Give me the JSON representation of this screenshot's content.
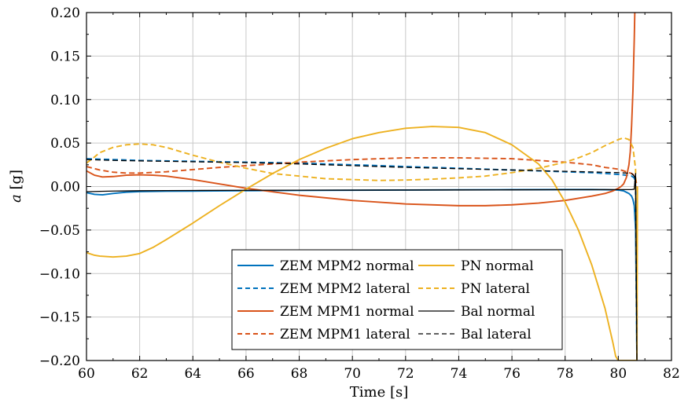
{
  "chart_data": {
    "type": "line",
    "xlabel": "Time [s]",
    "ylabel_italic": "a",
    "ylabel_unit": " [g]",
    "xlim": [
      60,
      82
    ],
    "ylim": [
      -0.2,
      0.2
    ],
    "x_ticks": [
      60,
      62,
      64,
      66,
      68,
      70,
      72,
      74,
      76,
      78,
      80,
      82
    ],
    "x_tick_labels": [
      "60",
      "62",
      "64",
      "66",
      "68",
      "70",
      "72",
      "74",
      "76",
      "78",
      "80",
      "82"
    ],
    "y_ticks": [
      -0.2,
      -0.15,
      -0.1,
      -0.05,
      0.0,
      0.05,
      0.1,
      0.15,
      0.2
    ],
    "y_tick_labels": [
      "−0.20",
      "−0.15",
      "−0.10",
      "−0.05",
      "0.00",
      "0.05",
      "0.10",
      "0.15",
      "0.20"
    ],
    "grid": true,
    "legend_position": "bottom-center",
    "colors": {
      "blue": "#0072bd",
      "orange": "#d95319",
      "yellow": "#edb120",
      "black": "#000000"
    },
    "series": [
      {
        "name": "ZEM MPM2 normal",
        "color": "#0072bd",
        "dash": "solid",
        "x": [
          60,
          60.3,
          60.6,
          61,
          61.5,
          62,
          63,
          64,
          66,
          68,
          70,
          72,
          74,
          76,
          78,
          79,
          79.5,
          80,
          80.2,
          80.4,
          80.5,
          80.55,
          80.6,
          80.65,
          80.7
        ],
        "y": [
          -0.007,
          -0.009,
          -0.0095,
          -0.008,
          -0.0065,
          -0.0058,
          -0.0054,
          -0.0052,
          -0.0048,
          -0.0045,
          -0.0042,
          -0.004,
          -0.0038,
          -0.0036,
          -0.0035,
          -0.0035,
          -0.0036,
          -0.004,
          -0.005,
          -0.008,
          -0.011,
          -0.015,
          -0.022,
          -0.05,
          -0.2
        ]
      },
      {
        "name": "ZEM MPM2 lateral",
        "color": "#0072bd",
        "dash": "dashed",
        "x": [
          60,
          61,
          62,
          64,
          66,
          68,
          70,
          72,
          74,
          76,
          78,
          79,
          80,
          80.3,
          80.5,
          80.6,
          80.65,
          80.7
        ],
        "y": [
          0.032,
          0.031,
          0.03,
          0.029,
          0.028,
          0.027,
          0.025,
          0.023,
          0.021,
          0.019,
          0.017,
          0.016,
          0.014,
          0.013,
          0.012,
          0.01,
          0.0,
          -0.2
        ]
      },
      {
        "name": "ZEM MPM1 normal",
        "color": "#d95319",
        "dash": "solid",
        "x": [
          60,
          60.3,
          60.6,
          61,
          61.5,
          62,
          62.5,
          63,
          64,
          65,
          66,
          67,
          68,
          70,
          72,
          74,
          75,
          76,
          77,
          78,
          79,
          79.5,
          79.8,
          80.0,
          80.1,
          80.2,
          80.3,
          80.4,
          80.45,
          80.5,
          80.55,
          80.6,
          80.62,
          80.65
        ],
        "y": [
          0.018,
          0.013,
          0.011,
          0.0115,
          0.013,
          0.0135,
          0.013,
          0.012,
          0.008,
          0.003,
          -0.002,
          -0.006,
          -0.01,
          -0.016,
          -0.02,
          -0.022,
          -0.022,
          -0.021,
          -0.019,
          -0.016,
          -0.011,
          -0.008,
          -0.005,
          -0.002,
          0.0,
          0.003,
          0.01,
          0.025,
          0.04,
          0.07,
          0.11,
          0.17,
          0.2,
          0.2
        ]
      },
      {
        "name": "ZEM MPM1 lateral",
        "color": "#d95319",
        "dash": "dashed",
        "x": [
          60,
          60.5,
          61,
          61.5,
          62,
          63,
          64,
          65,
          66,
          68,
          70,
          72,
          74,
          76,
          77,
          78,
          79,
          79.5,
          80,
          80.3,
          80.5,
          80.6,
          80.65,
          80.7
        ],
        "y": [
          0.023,
          0.019,
          0.0165,
          0.0155,
          0.0155,
          0.017,
          0.0195,
          0.022,
          0.024,
          0.028,
          0.031,
          0.033,
          0.033,
          0.032,
          0.03,
          0.028,
          0.025,
          0.022,
          0.02,
          0.017,
          0.015,
          0.013,
          0.01,
          0.0
        ]
      },
      {
        "name": "PN normal",
        "color": "#edb120",
        "dash": "solid",
        "x": [
          60,
          60.3,
          60.5,
          61,
          61.5,
          62,
          62.5,
          63,
          64,
          65,
          66,
          67,
          68,
          69,
          70,
          71,
          72,
          73,
          74,
          75,
          76,
          77,
          77.5,
          78,
          78.5,
          79,
          79.5,
          79.8,
          79.9,
          80.0,
          80.7,
          80.72
        ],
        "y": [
          -0.076,
          -0.079,
          -0.08,
          -0.081,
          -0.08,
          -0.077,
          -0.07,
          -0.061,
          -0.042,
          -0.022,
          -0.003,
          0.015,
          0.031,
          0.044,
          0.055,
          0.062,
          0.067,
          0.069,
          0.068,
          0.062,
          0.048,
          0.026,
          0.008,
          -0.018,
          -0.05,
          -0.09,
          -0.14,
          -0.18,
          -0.195,
          -0.2,
          -0.2,
          0.0
        ]
      },
      {
        "name": "PN lateral",
        "color": "#edb120",
        "dash": "dashed",
        "x": [
          60,
          60.3,
          60.5,
          61,
          61.5,
          62,
          62.5,
          63,
          64,
          65,
          66,
          67,
          68,
          69,
          70,
          71,
          72,
          73,
          74,
          75,
          76,
          77,
          78,
          78.5,
          79,
          79.5,
          80,
          80.2,
          80.4,
          80.55,
          80.65,
          80.7
        ],
        "y": [
          0.027,
          0.034,
          0.039,
          0.045,
          0.048,
          0.049,
          0.048,
          0.045,
          0.036,
          0.028,
          0.021,
          0.015,
          0.012,
          0.009,
          0.008,
          0.007,
          0.0075,
          0.0085,
          0.01,
          0.012,
          0.016,
          0.021,
          0.028,
          0.033,
          0.039,
          0.047,
          0.054,
          0.056,
          0.054,
          0.045,
          0.02,
          -0.2
        ]
      },
      {
        "name": "Bal normal",
        "color": "#000000",
        "dash": "solid",
        "x": [
          60,
          60.5,
          61,
          61.5,
          62,
          63,
          64,
          66,
          68,
          70,
          72,
          74,
          76,
          78,
          80,
          80.3,
          80.5,
          80.6,
          80.65,
          80.7
        ],
        "y": [
          -0.006,
          -0.0055,
          -0.0052,
          -0.005,
          -0.0048,
          -0.0046,
          -0.0045,
          -0.0043,
          -0.0042,
          -0.0041,
          -0.004,
          -0.0039,
          -0.0038,
          -0.0036,
          -0.0035,
          -0.0035,
          -0.0035,
          -0.003,
          0.015,
          -0.2
        ]
      },
      {
        "name": "Bal lateral",
        "color": "#000000",
        "dash": "dashed",
        "x": [
          60,
          61,
          62,
          64,
          66,
          68,
          70,
          72,
          74,
          76,
          78,
          79,
          80,
          80.3,
          80.5,
          80.6,
          80.65,
          80.7
        ],
        "y": [
          0.031,
          0.03,
          0.0295,
          0.0285,
          0.0275,
          0.026,
          0.024,
          0.022,
          0.0205,
          0.019,
          0.0175,
          0.0168,
          0.016,
          0.0155,
          0.015,
          0.012,
          0.0,
          -0.2
        ]
      }
    ],
    "legend": [
      {
        "label": "ZEM MPM2 normal",
        "series": 0
      },
      {
        "label": "PN normal",
        "series": 4
      },
      {
        "label": "ZEM MPM2 lateral",
        "series": 1
      },
      {
        "label": "PN lateral",
        "series": 5
      },
      {
        "label": "ZEM MPM1 normal",
        "series": 2
      },
      {
        "label": "Bal normal",
        "series": 6
      },
      {
        "label": "ZEM MPM1 lateral",
        "series": 3
      },
      {
        "label": "Bal lateral",
        "series": 7
      }
    ]
  }
}
